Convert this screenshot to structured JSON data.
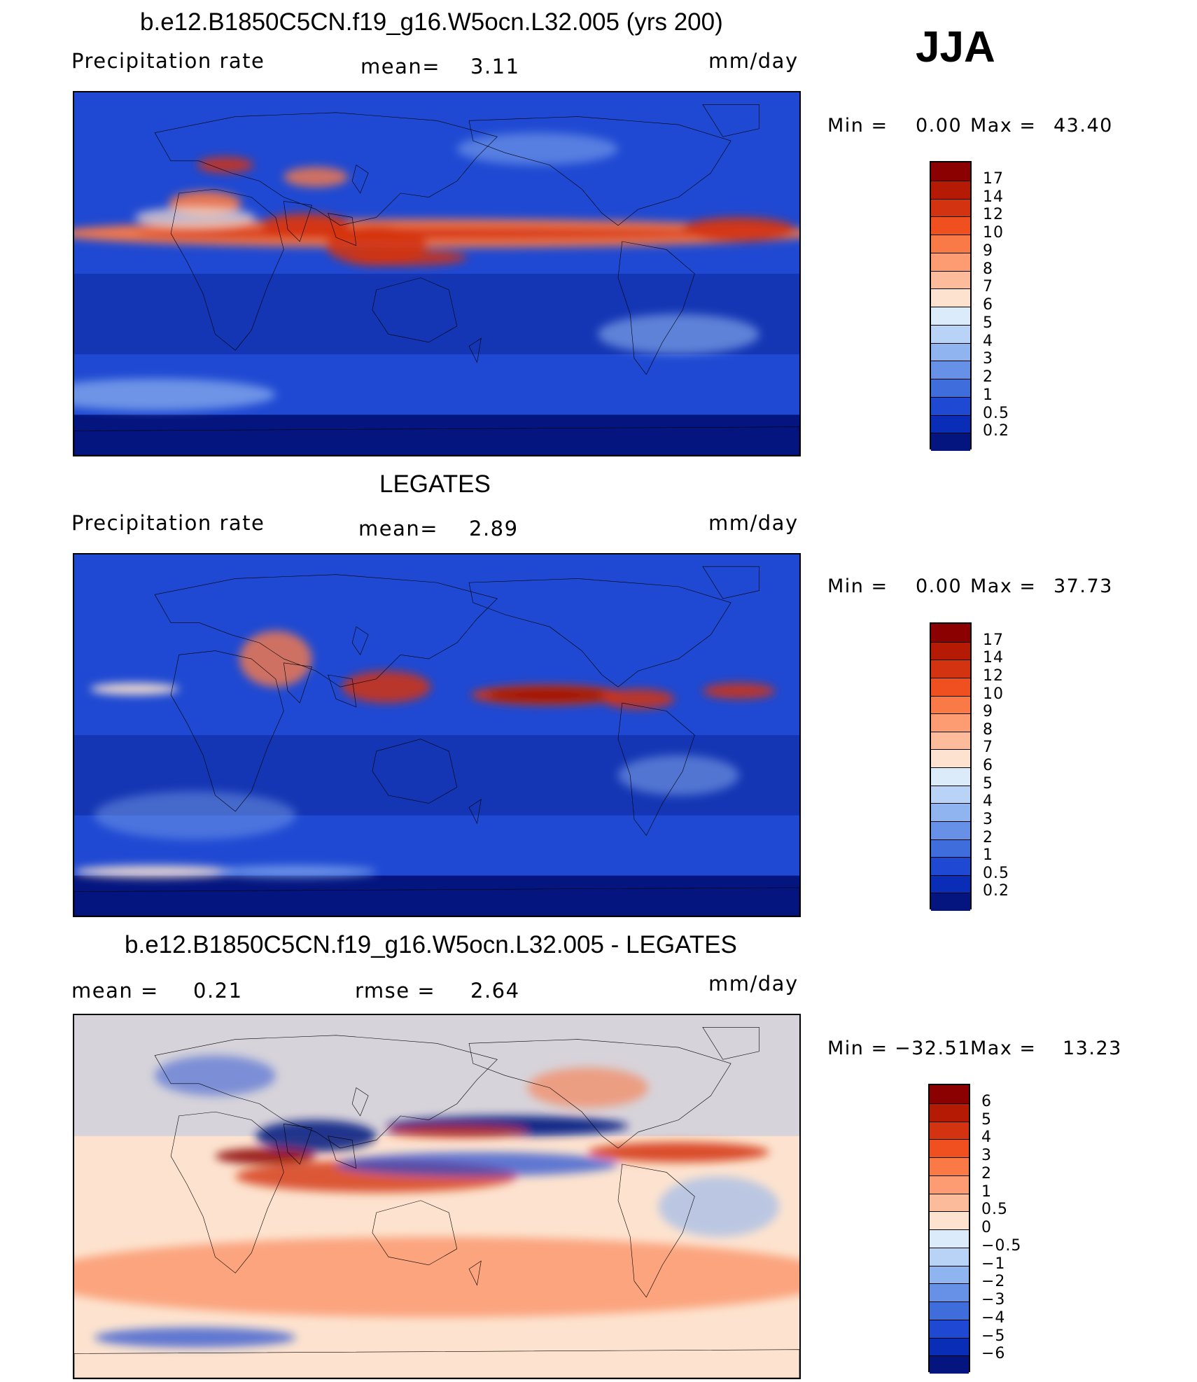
{
  "season": "JJA",
  "panels": [
    {
      "id": "model",
      "title": "b.e12.B1850C5CN.f19_g16.W5ocn.L32.005 (yrs 200)",
      "left_label": "Precipitation  rate",
      "mid_label": "mean=",
      "mid_value": "3.11",
      "units": "mm/day",
      "min_label": "Min  =",
      "min_value": "0.00",
      "max_label": "Max  =",
      "max_value": "43.40",
      "colorbar_levels": [
        "17",
        "14",
        "12",
        "10",
        "9",
        "8",
        "7",
        "6",
        "5",
        "4",
        "3",
        "2",
        "1",
        "0.5",
        "0.2"
      ],
      "colorbar_colors": [
        "#8b0000",
        "#b41a04",
        "#d33311",
        "#f0501f",
        "#fa7a47",
        "#fd9c73",
        "#fcbc9c",
        "#fde3cf",
        "#dcebfa",
        "#b8d3f5",
        "#8fb4ef",
        "#6790e7",
        "#3f6ddc",
        "#1f49d2",
        "#0a2db8",
        "#04157f"
      ]
    },
    {
      "id": "obs",
      "title": "LEGATES",
      "left_label": "Precipitation  rate",
      "mid_label": "mean=",
      "mid_value": "2.89",
      "units": "mm/day",
      "min_label": "Min  =",
      "min_value": "0.00",
      "max_label": "Max  =",
      "max_value": "37.73",
      "colorbar_levels": [
        "17",
        "14",
        "12",
        "10",
        "9",
        "8",
        "7",
        "6",
        "5",
        "4",
        "3",
        "2",
        "1",
        "0.5",
        "0.2"
      ],
      "colorbar_colors": [
        "#8b0000",
        "#b41a04",
        "#d33311",
        "#f0501f",
        "#fa7a47",
        "#fd9c73",
        "#fcbc9c",
        "#fde3cf",
        "#dcebfa",
        "#b8d3f5",
        "#8fb4ef",
        "#6790e7",
        "#3f6ddc",
        "#1f49d2",
        "#0a2db8",
        "#04157f"
      ]
    },
    {
      "id": "diff",
      "title": "b.e12.B1850C5CN.f19_g16.W5ocn.L32.005 - LEGATES",
      "left_label": "mean  =",
      "left_value": "0.21",
      "mid_label": "rmse  =",
      "mid_value": "2.64",
      "units": "mm/day",
      "min_label": "Min  =",
      "min_value": "−32.51",
      "max_label": "Max  =",
      "max_value": "13.23",
      "colorbar_levels": [
        "6",
        "5",
        "4",
        "3",
        "2",
        "1",
        "0.5",
        "0",
        "−0.5",
        "−1",
        "−2",
        "−3",
        "−4",
        "−5",
        "−6"
      ],
      "colorbar_colors": [
        "#8b0000",
        "#b41a04",
        "#d33311",
        "#f0501f",
        "#fa7a47",
        "#fd9c73",
        "#fcbc9c",
        "#fde3cf",
        "#dcebfa",
        "#b8d3f5",
        "#8fb4ef",
        "#6790e7",
        "#3f6ddc",
        "#1f49d2",
        "#0a2db8",
        "#04157f"
      ]
    }
  ],
  "map_colors": {
    "deep_blue": "#04157f",
    "mid_blue": "#1f49d2",
    "light_blue": "#8fb4ef",
    "pale": "#fde3cf",
    "orange": "#fa7a47",
    "red": "#d33311",
    "dark_red": "#8b0000",
    "coast": "#000000"
  }
}
